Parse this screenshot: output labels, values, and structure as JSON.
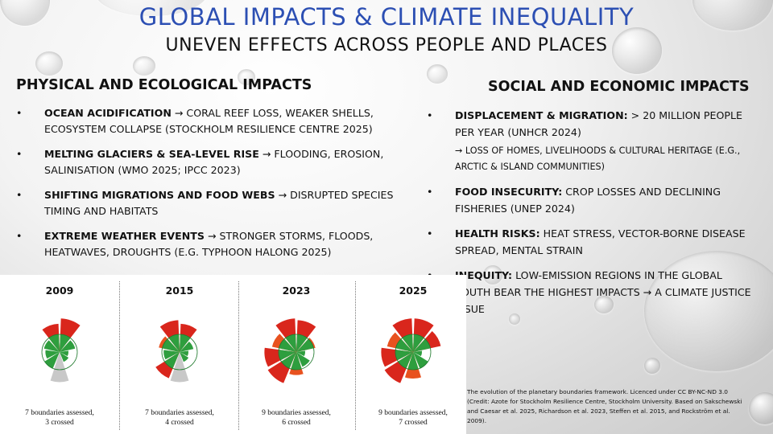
{
  "slide": {
    "title": "GLOBAL IMPACTS & CLIMATE INEQUALITY",
    "subtitle": "UNEVEN EFFECTS ACROSS PEOPLE AND PLACES"
  },
  "left": {
    "heading": "PHYSICAL AND ECOLOGICAL IMPACTS",
    "items": [
      {
        "bold": "OCEAN ACIDIFICATION",
        "text": " → CORAL REEF LOSS, WEAKER SHELLS, ECOSYSTEM COLLAPSE (STOCKHOLM RESILIENCE CENTRE 2025)"
      },
      {
        "bold": "MELTING GLACIERS & SEA-LEVEL RISE",
        "text": " → FLOODING, EROSION, SALINISATION (WMO 2025; IPCC 2023)"
      },
      {
        "bold": "SHIFTING MIGRATIONS AND FOOD WEBS",
        "text": " → DISRUPTED SPECIES TIMING AND HABITATS"
      },
      {
        "bold": "EXTREME WEATHER EVENTS",
        "text": " → STRONGER STORMS, FLOODS, HEATWAVES, DROUGHTS (E.G. TYPHOON HALONG 2025)"
      }
    ]
  },
  "right": {
    "heading": "SOCIAL AND ECONOMIC IMPACTS",
    "items": [
      {
        "bold": "DISPLACEMENT & MIGRATION:",
        "text": " > 20 MILLION PEOPLE PER YEAR (UNHCR 2024)",
        "sub": "→ LOSS OF HOMES, LIVELIHOODS & CULTURAL HERITAGE (E.G., ARCTIC & ISLAND COMMUNITIES)"
      },
      {
        "bold": "FOOD INSECURITY:",
        "text": " CROP LOSSES AND DECLINING FISHERIES (UNEP 2024)"
      },
      {
        "bold": "HEALTH RISKS:",
        "text": " HEAT STRESS, VECTOR-BORNE DISEASE SPREAD, MENTAL STRAIN"
      },
      {
        "bold": "INEQUITY:",
        "text": " LOW-EMISSION REGIONS IN THE GLOBAL SOUTH BEAR THE HIGHEST IMPACTS → A CLIMATE JUSTICE ISSUE"
      }
    ]
  },
  "bullet": "•",
  "figure": {
    "panels": [
      {
        "year": "2009",
        "caption": "7 boundaries assessed,\n3 crossed"
      },
      {
        "year": "2015",
        "caption": "7 boundaries assessed,\n4 crossed"
      },
      {
        "year": "2023",
        "caption": "9 boundaries assessed,\n6 crossed"
      },
      {
        "year": "2025",
        "caption": "9 boundaries assessed,\n7 crossed"
      }
    ],
    "colors": {
      "safe": "#2e9e3e",
      "zone": "#e8521f",
      "high": "#d9261c",
      "unassessed": "#c8c8c8"
    }
  },
  "credit": "The evolution of the planetary boundaries framework. Licenced under CC BY-NC-ND 3.0 (Credit: Azote for Stockholm Resilience Centre, Stockholm University. Based on Sakschewski and Caesar et al. 2025, Richardson et al. 2023, Steffen et al. 2015, and Rockström et al. 2009)."
}
